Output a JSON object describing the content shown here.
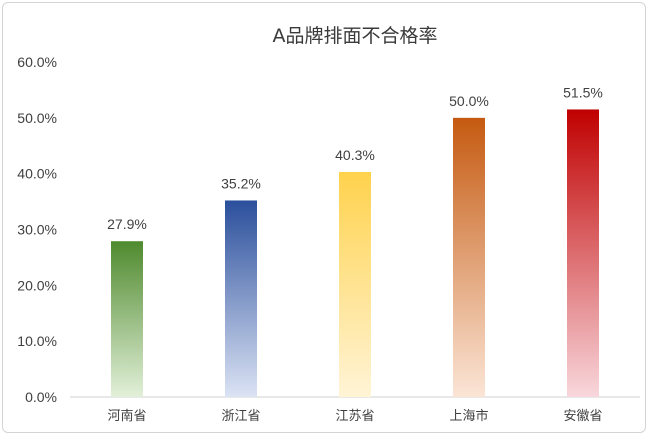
{
  "chart_data": {
    "type": "bar",
    "title": "A品牌排面不合格率",
    "categories": [
      "河南省",
      "浙江省",
      "江苏省",
      "上海市",
      "安徽省"
    ],
    "values": [
      27.9,
      35.2,
      40.3,
      50.0,
      51.5
    ],
    "data_labels": [
      "27.9%",
      "35.2%",
      "40.3%",
      "50.0%",
      "51.5%"
    ],
    "ylim": [
      0,
      60
    ],
    "y_ticks": [
      "0.0%",
      "10.0%",
      "20.0%",
      "30.0%",
      "40.0%",
      "50.0%",
      "60.0%"
    ],
    "grid": false,
    "legend": "none",
    "bar_colors": [
      {
        "top": "#4f8a2e",
        "bottom": "#e2f0d9"
      },
      {
        "top": "#2b4f9c",
        "bottom": "#dbe3f4"
      },
      {
        "top": "#ffd24d",
        "bottom": "#fff4d6"
      },
      {
        "top": "#c55a11",
        "bottom": "#fbe5d6"
      },
      {
        "top": "#c00000",
        "bottom": "#f8d7dc"
      }
    ]
  }
}
